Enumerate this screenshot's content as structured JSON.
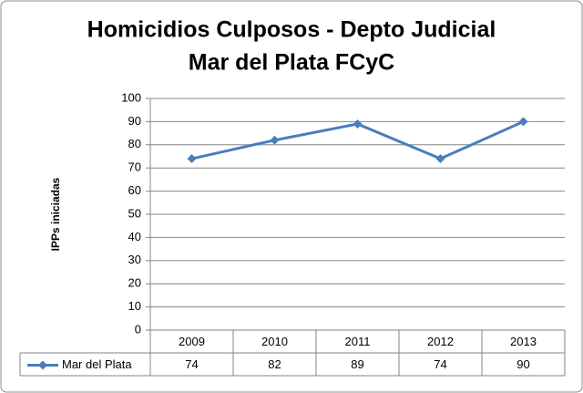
{
  "chart_data": {
    "type": "line",
    "title": [
      "Homicidios Culposos - Depto Judicial",
      "Mar del Plata FCyC"
    ],
    "y_label": "IPPs iniciadas",
    "categories": [
      "2009",
      "2010",
      "2011",
      "2012",
      "2013"
    ],
    "series": [
      {
        "name": "Mar del Plata",
        "color": "#4a7ebb",
        "values": [
          74,
          82,
          89,
          74,
          90
        ]
      }
    ],
    "ylim": [
      0,
      100
    ],
    "yticks": [
      0,
      10,
      20,
      30,
      40,
      50,
      60,
      70,
      80,
      90,
      100
    ],
    "grid": true,
    "data_table": true
  }
}
